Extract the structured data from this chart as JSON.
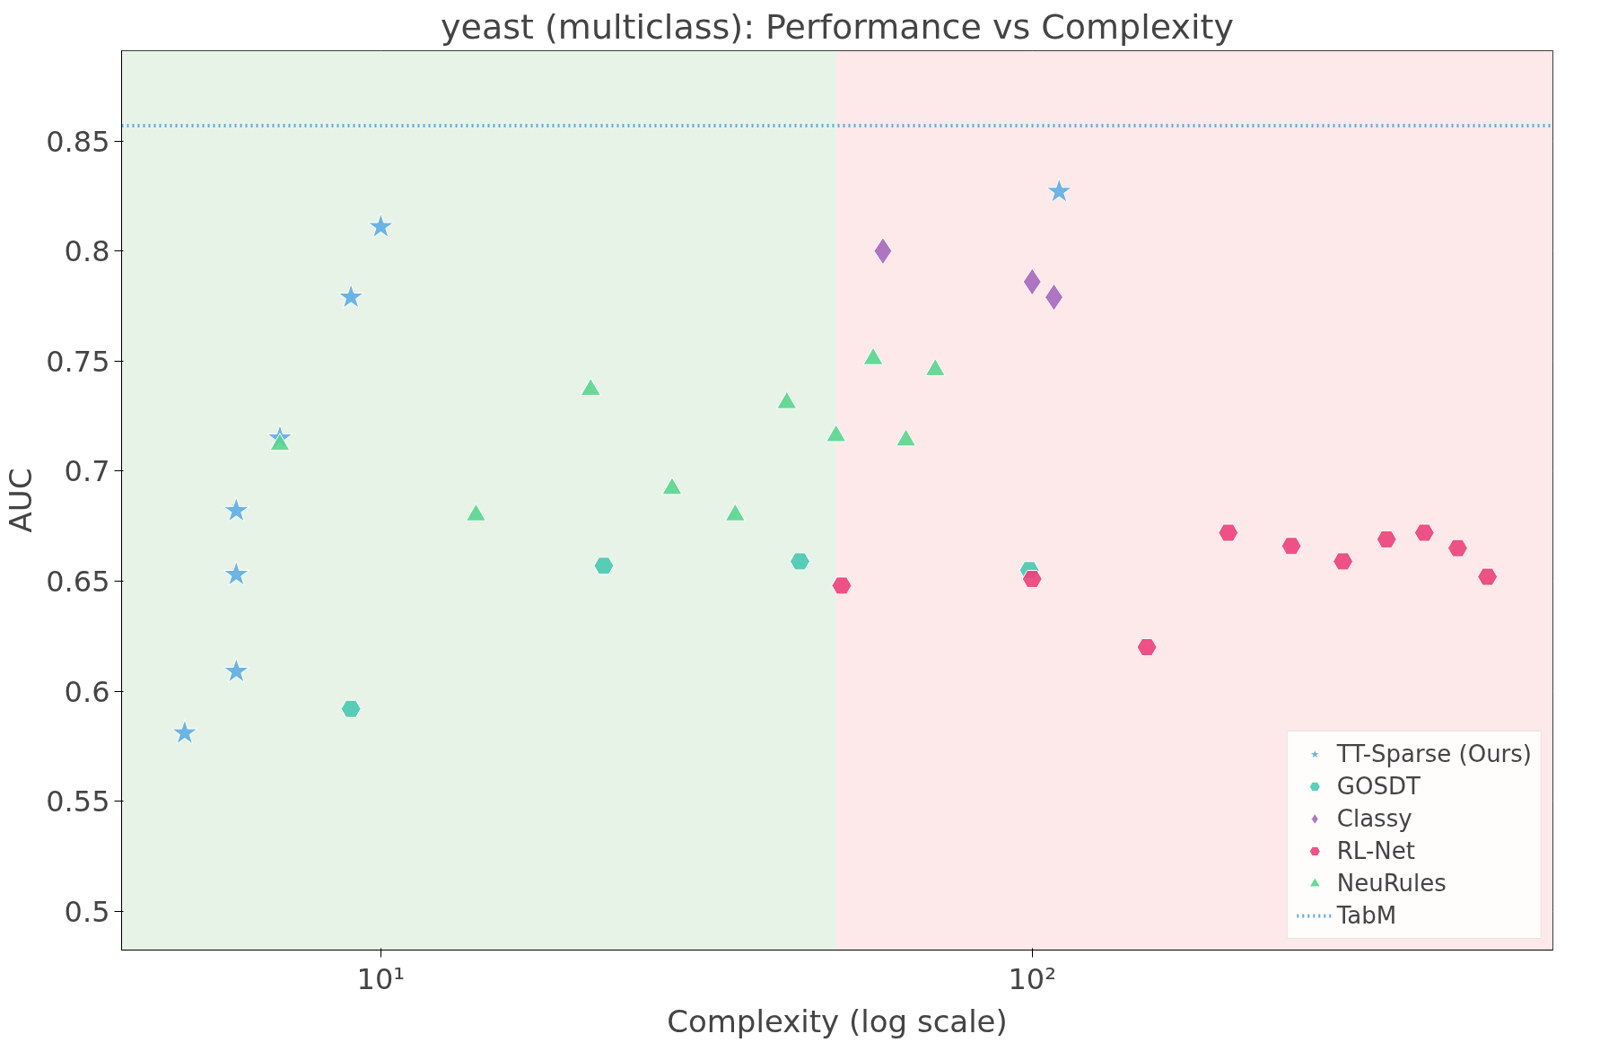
{
  "chart_data": {
    "type": "scatter",
    "title": "yeast (multiclass): Performance vs Complexity",
    "xlabel": "Complexity (log scale)",
    "ylabel": "AUC",
    "log": "x",
    "xlim": [
      4,
      630
    ],
    "ylim": [
      0.4824,
      0.891
    ],
    "xticks": [
      {
        "value": 10,
        "label": "10¹"
      },
      {
        "value": 100,
        "label": "10²"
      }
    ],
    "yticks": [
      0.5,
      0.55,
      0.6,
      0.65,
      0.7,
      0.75,
      0.8,
      0.85
    ],
    "grid": true,
    "legend": "bottom right",
    "bands": [
      {
        "axis": "x",
        "from": 4,
        "to": 50,
        "color": "#e8f3e8"
      },
      {
        "axis": "x",
        "from": 50,
        "to": 630,
        "color": "#fde8ea"
      }
    ],
    "ref_lines": [
      {
        "axis": "y",
        "value": 0.857,
        "label": "TabM",
        "color": "#5dade2",
        "line_style": "dotted"
      }
    ],
    "series": [
      {
        "name": "TT-Sparse (Ours)",
        "color": "#5dade2",
        "marker": "star",
        "x": [
          5,
          6,
          6,
          6,
          7,
          9,
          10,
          110
        ],
        "values": [
          0.581,
          0.609,
          0.653,
          0.682,
          0.715,
          0.779,
          0.811,
          0.827
        ]
      },
      {
        "name": "GOSDT",
        "color": "#48c9b0",
        "x": [
          9,
          22,
          44,
          99
        ],
        "values": [
          0.592,
          0.657,
          0.659,
          0.655
        ]
      },
      {
        "name": "Classy",
        "color": "#a569bd",
        "marker": "diamond",
        "x": [
          59,
          100,
          108
        ],
        "values": [
          0.8,
          0.786,
          0.779
        ]
      },
      {
        "name": "RL-Net",
        "color": "#ec407a",
        "x": [
          51,
          100,
          150,
          200,
          250,
          300,
          350,
          400,
          450,
          500
        ],
        "values": [
          0.648,
          0.651,
          0.62,
          0.672,
          0.666,
          0.659,
          0.669,
          0.672,
          0.665,
          0.652
        ]
      },
      {
        "name": "NeuRules",
        "color": "#58d68d",
        "marker": "triangle",
        "x": [
          7,
          14,
          21,
          28,
          35,
          42,
          50,
          57,
          64,
          71
        ],
        "values": [
          0.712,
          0.68,
          0.737,
          0.692,
          0.68,
          0.731,
          0.716,
          0.751,
          0.714,
          0.746
        ]
      }
    ]
  }
}
